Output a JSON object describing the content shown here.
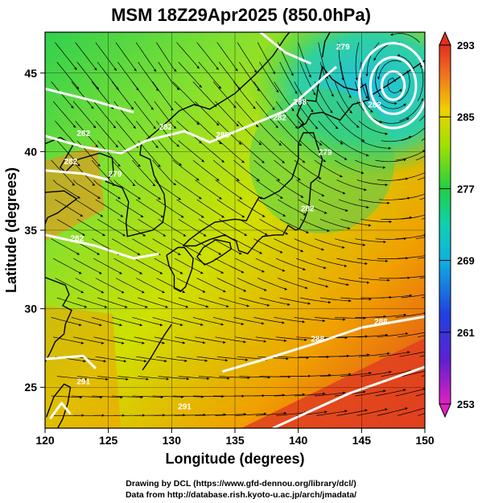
{
  "title": "MSM 18Z29Apr2025 (850.0hPa)",
  "x_axis": {
    "label": "Longitude (degrees)",
    "ticks": [
      120,
      125,
      130,
      135,
      140,
      145,
      150
    ],
    "range": [
      120,
      150
    ]
  },
  "y_axis": {
    "label": "Latitude  (degrees)",
    "ticks": [
      25,
      30,
      35,
      40,
      45
    ],
    "range": [
      22.4,
      47.6
    ]
  },
  "colorbar": {
    "min": 253,
    "max": 293,
    "tick_labels": [
      "293",
      "285",
      "277",
      "269",
      "261",
      "253"
    ],
    "tick_values": [
      293,
      285,
      277,
      269,
      261,
      253
    ],
    "colors": [
      "#e020c0",
      "#a020d0",
      "#3040e0",
      "#10a0e0",
      "#10d0c0",
      "#20d040",
      "#60e020",
      "#c0e000",
      "#f0e000",
      "#f0b000",
      "#f07020",
      "#e03020"
    ]
  },
  "contour_labels": [
    "282",
    "279",
    "282",
    "282",
    "285",
    "288",
    "279",
    "282",
    "282",
    "282",
    "282",
    "279",
    "291",
    "288",
    "288",
    "291"
  ],
  "credits": {
    "line1": "Drawing by DCL (https://www.gfd-dennou.org/library/dcl/)",
    "line2": "Data from http://database.rish.kyoto-u.ac.jp/arch/jmadata/"
  },
  "colors": {
    "contour": "#ffffff",
    "coast": "#000000",
    "streamline": "#000000"
  }
}
